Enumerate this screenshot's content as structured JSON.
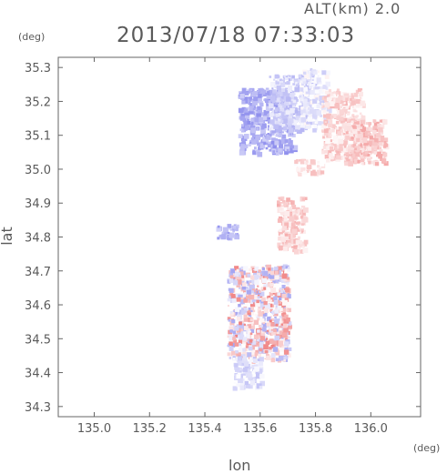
{
  "header": {
    "altitude": "ALT(km) 2.0",
    "timestamp": "2013/07/18 07:33:03"
  },
  "chart_data": {
    "type": "heatmap",
    "xlabel": "lon",
    "ylabel": "lat",
    "x_unit": "(deg)",
    "y_unit": "(deg)",
    "xlim": [
      134.87,
      136.18
    ],
    "ylim": [
      34.27,
      35.33
    ],
    "x_ticks": [
      135.0,
      135.2,
      135.4,
      135.6,
      135.8,
      136.0
    ],
    "x_tick_labels": [
      "135.0",
      "135.2",
      "135.4",
      "135.6",
      "135.8",
      "136.0"
    ],
    "y_ticks": [
      34.3,
      34.4,
      34.5,
      34.6,
      34.7,
      34.8,
      34.9,
      35.0,
      35.1,
      35.2,
      35.3
    ],
    "y_tick_labels": [
      "34.3",
      "34.4",
      "34.5",
      "34.6",
      "34.7",
      "34.8",
      "34.9",
      "35.0",
      "35.1",
      "35.2",
      "35.3"
    ],
    "colors": {
      "negative": "#7b7be8",
      "positive": "#ee6f6f",
      "axis": "#666666"
    },
    "regions": [
      {
        "lon": [
          135.52,
          135.72
        ],
        "lat": [
          35.05,
          35.24
        ],
        "value": -0.55
      },
      {
        "lon": [
          135.63,
          135.8
        ],
        "lat": [
          35.12,
          35.28
        ],
        "value": -0.3
      },
      {
        "lon": [
          135.74,
          135.84
        ],
        "lat": [
          35.13,
          35.3
        ],
        "value": -0.15
      },
      {
        "lon": [
          135.82,
          135.97
        ],
        "lat": [
          35.03,
          35.24
        ],
        "value": 0.25
      },
      {
        "lon": [
          135.9,
          136.05
        ],
        "lat": [
          35.02,
          35.15
        ],
        "value": 0.35
      },
      {
        "lon": [
          135.72,
          135.82
        ],
        "lat": [
          34.99,
          35.03
        ],
        "value": 0.2
      },
      {
        "lon": [
          135.44,
          135.52
        ],
        "lat": [
          34.8,
          34.84
        ],
        "value": -0.5
      },
      {
        "lon": [
          135.66,
          135.76
        ],
        "lat": [
          34.76,
          34.92
        ],
        "value": 0.3
      },
      {
        "lon": [
          135.48,
          135.7
        ],
        "lat": [
          34.44,
          34.72
        ],
        "value": 0.1
      },
      {
        "lon": [
          135.5,
          135.6
        ],
        "lat": [
          34.36,
          34.45
        ],
        "value": -0.2
      }
    ]
  }
}
